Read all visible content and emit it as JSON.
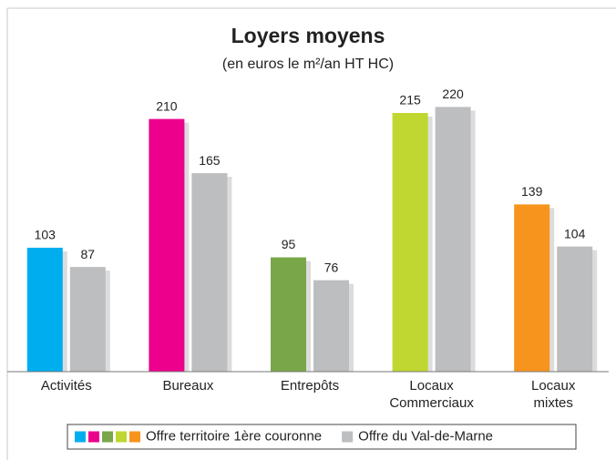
{
  "chart_data": {
    "type": "bar",
    "title": "Loyers moyens",
    "subtitle": "(en euros le m²/an HT HC)",
    "categories": [
      "Activités",
      "Bureaux",
      "Entrepôts",
      "Locaux\nCommerciaux",
      "Locaux\nmixtes"
    ],
    "series": [
      {
        "name": "Offre territoire 1ère couronne",
        "colors": [
          "#00aeef",
          "#ec008c",
          "#7aa64a",
          "#bfd730",
          "#f7941d"
        ],
        "values": [
          103,
          210,
          95,
          215,
          139
        ]
      },
      {
        "name": "Offre du Val-de-Marne",
        "color": "#bdbec0",
        "values": [
          87,
          165,
          76,
          220,
          104
        ]
      }
    ],
    "ylim": [
      0,
      240
    ],
    "legend": "bottom"
  }
}
